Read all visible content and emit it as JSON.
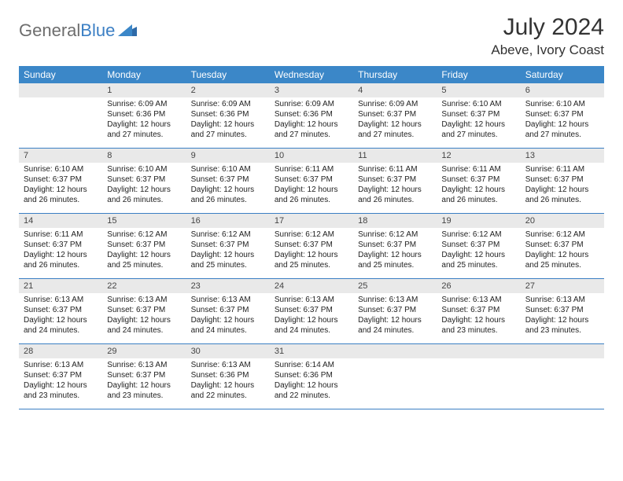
{
  "brand": {
    "part1": "General",
    "part2": "Blue"
  },
  "title": "July 2024",
  "location": "Abeve, Ivory Coast",
  "colors": {
    "header_bg": "#3b87c8",
    "header_text": "#ffffff",
    "daynum_bg": "#e9e9e9",
    "row_border": "#3b7fc4",
    "brand_gray": "#6d6d6d",
    "brand_blue": "#3b7fc4",
    "body_text": "#222222",
    "page_bg": "#ffffff"
  },
  "dow": [
    "Sunday",
    "Monday",
    "Tuesday",
    "Wednesday",
    "Thursday",
    "Friday",
    "Saturday"
  ],
  "weeks": [
    [
      {
        "n": "",
        "empty": true
      },
      {
        "n": "1",
        "sr": "Sunrise: 6:09 AM",
        "ss": "Sunset: 6:36 PM",
        "dl": "Daylight: 12 hours and 27 minutes."
      },
      {
        "n": "2",
        "sr": "Sunrise: 6:09 AM",
        "ss": "Sunset: 6:36 PM",
        "dl": "Daylight: 12 hours and 27 minutes."
      },
      {
        "n": "3",
        "sr": "Sunrise: 6:09 AM",
        "ss": "Sunset: 6:36 PM",
        "dl": "Daylight: 12 hours and 27 minutes."
      },
      {
        "n": "4",
        "sr": "Sunrise: 6:09 AM",
        "ss": "Sunset: 6:37 PM",
        "dl": "Daylight: 12 hours and 27 minutes."
      },
      {
        "n": "5",
        "sr": "Sunrise: 6:10 AM",
        "ss": "Sunset: 6:37 PM",
        "dl": "Daylight: 12 hours and 27 minutes."
      },
      {
        "n": "6",
        "sr": "Sunrise: 6:10 AM",
        "ss": "Sunset: 6:37 PM",
        "dl": "Daylight: 12 hours and 27 minutes."
      }
    ],
    [
      {
        "n": "7",
        "sr": "Sunrise: 6:10 AM",
        "ss": "Sunset: 6:37 PM",
        "dl": "Daylight: 12 hours and 26 minutes."
      },
      {
        "n": "8",
        "sr": "Sunrise: 6:10 AM",
        "ss": "Sunset: 6:37 PM",
        "dl": "Daylight: 12 hours and 26 minutes."
      },
      {
        "n": "9",
        "sr": "Sunrise: 6:10 AM",
        "ss": "Sunset: 6:37 PM",
        "dl": "Daylight: 12 hours and 26 minutes."
      },
      {
        "n": "10",
        "sr": "Sunrise: 6:11 AM",
        "ss": "Sunset: 6:37 PM",
        "dl": "Daylight: 12 hours and 26 minutes."
      },
      {
        "n": "11",
        "sr": "Sunrise: 6:11 AM",
        "ss": "Sunset: 6:37 PM",
        "dl": "Daylight: 12 hours and 26 minutes."
      },
      {
        "n": "12",
        "sr": "Sunrise: 6:11 AM",
        "ss": "Sunset: 6:37 PM",
        "dl": "Daylight: 12 hours and 26 minutes."
      },
      {
        "n": "13",
        "sr": "Sunrise: 6:11 AM",
        "ss": "Sunset: 6:37 PM",
        "dl": "Daylight: 12 hours and 26 minutes."
      }
    ],
    [
      {
        "n": "14",
        "sr": "Sunrise: 6:11 AM",
        "ss": "Sunset: 6:37 PM",
        "dl": "Daylight: 12 hours and 26 minutes."
      },
      {
        "n": "15",
        "sr": "Sunrise: 6:12 AM",
        "ss": "Sunset: 6:37 PM",
        "dl": "Daylight: 12 hours and 25 minutes."
      },
      {
        "n": "16",
        "sr": "Sunrise: 6:12 AM",
        "ss": "Sunset: 6:37 PM",
        "dl": "Daylight: 12 hours and 25 minutes."
      },
      {
        "n": "17",
        "sr": "Sunrise: 6:12 AM",
        "ss": "Sunset: 6:37 PM",
        "dl": "Daylight: 12 hours and 25 minutes."
      },
      {
        "n": "18",
        "sr": "Sunrise: 6:12 AM",
        "ss": "Sunset: 6:37 PM",
        "dl": "Daylight: 12 hours and 25 minutes."
      },
      {
        "n": "19",
        "sr": "Sunrise: 6:12 AM",
        "ss": "Sunset: 6:37 PM",
        "dl": "Daylight: 12 hours and 25 minutes."
      },
      {
        "n": "20",
        "sr": "Sunrise: 6:12 AM",
        "ss": "Sunset: 6:37 PM",
        "dl": "Daylight: 12 hours and 25 minutes."
      }
    ],
    [
      {
        "n": "21",
        "sr": "Sunrise: 6:13 AM",
        "ss": "Sunset: 6:37 PM",
        "dl": "Daylight: 12 hours and 24 minutes."
      },
      {
        "n": "22",
        "sr": "Sunrise: 6:13 AM",
        "ss": "Sunset: 6:37 PM",
        "dl": "Daylight: 12 hours and 24 minutes."
      },
      {
        "n": "23",
        "sr": "Sunrise: 6:13 AM",
        "ss": "Sunset: 6:37 PM",
        "dl": "Daylight: 12 hours and 24 minutes."
      },
      {
        "n": "24",
        "sr": "Sunrise: 6:13 AM",
        "ss": "Sunset: 6:37 PM",
        "dl": "Daylight: 12 hours and 24 minutes."
      },
      {
        "n": "25",
        "sr": "Sunrise: 6:13 AM",
        "ss": "Sunset: 6:37 PM",
        "dl": "Daylight: 12 hours and 24 minutes."
      },
      {
        "n": "26",
        "sr": "Sunrise: 6:13 AM",
        "ss": "Sunset: 6:37 PM",
        "dl": "Daylight: 12 hours and 23 minutes."
      },
      {
        "n": "27",
        "sr": "Sunrise: 6:13 AM",
        "ss": "Sunset: 6:37 PM",
        "dl": "Daylight: 12 hours and 23 minutes."
      }
    ],
    [
      {
        "n": "28",
        "sr": "Sunrise: 6:13 AM",
        "ss": "Sunset: 6:37 PM",
        "dl": "Daylight: 12 hours and 23 minutes."
      },
      {
        "n": "29",
        "sr": "Sunrise: 6:13 AM",
        "ss": "Sunset: 6:37 PM",
        "dl": "Daylight: 12 hours and 23 minutes."
      },
      {
        "n": "30",
        "sr": "Sunrise: 6:13 AM",
        "ss": "Sunset: 6:36 PM",
        "dl": "Daylight: 12 hours and 22 minutes."
      },
      {
        "n": "31",
        "sr": "Sunrise: 6:14 AM",
        "ss": "Sunset: 6:36 PM",
        "dl": "Daylight: 12 hours and 22 minutes."
      },
      {
        "n": "",
        "empty": true
      },
      {
        "n": "",
        "empty": true
      },
      {
        "n": "",
        "empty": true
      }
    ]
  ]
}
